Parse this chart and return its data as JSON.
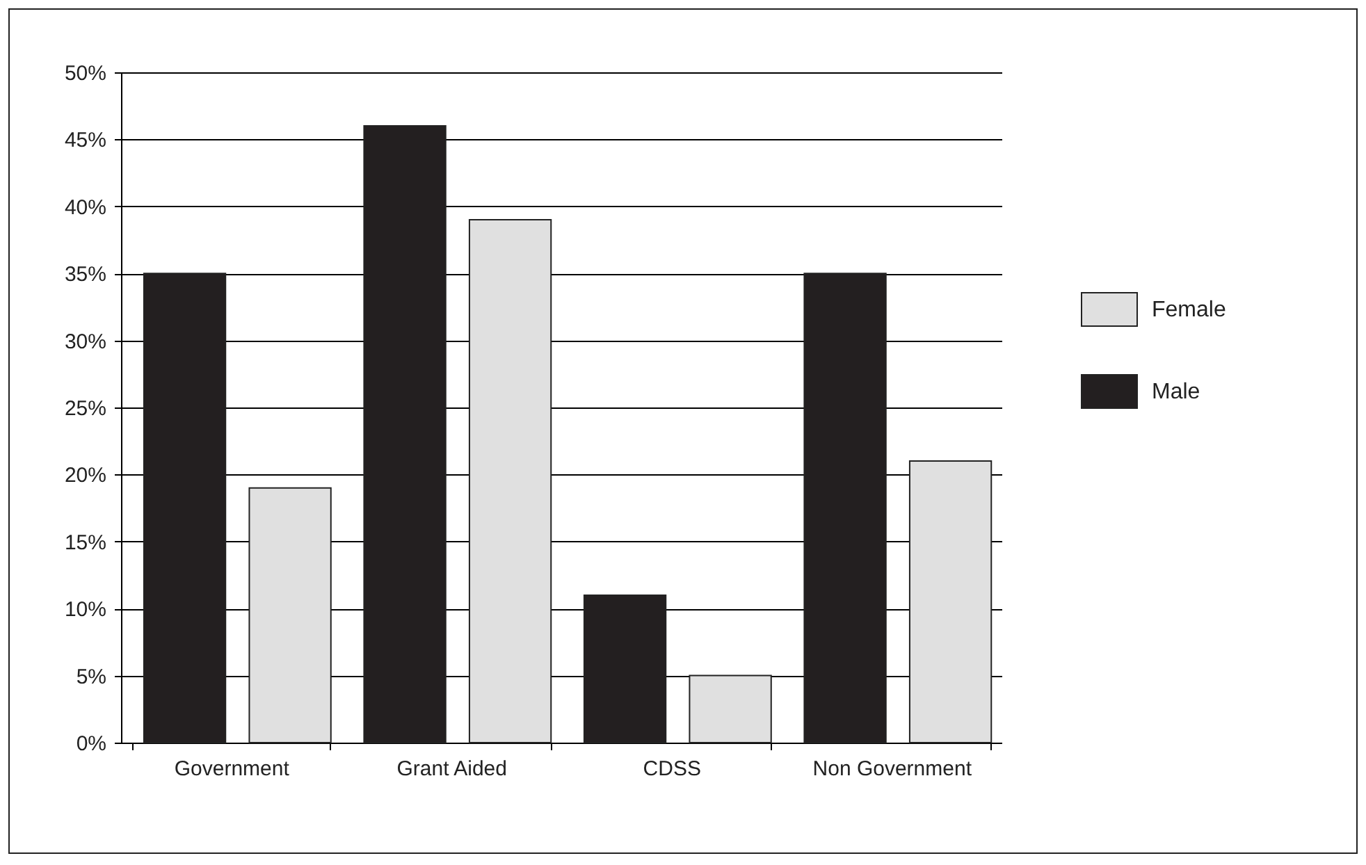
{
  "chart_data": {
    "type": "bar",
    "categories": [
      "Government",
      "Grant Aided",
      "CDSS",
      "Non Government"
    ],
    "series": [
      {
        "name": "Male",
        "color": "#231f20",
        "values": [
          35,
          46,
          11,
          35
        ]
      },
      {
        "name": "Female",
        "color": "#e0e0e0",
        "values": [
          19,
          39,
          5,
          21
        ]
      }
    ],
    "ylim": [
      0,
      50
    ],
    "yticks": [
      {
        "value": 0,
        "label": "0%"
      },
      {
        "value": 5,
        "label": "5%"
      },
      {
        "value": 10,
        "label": "10%"
      },
      {
        "value": 15,
        "label": "15%"
      },
      {
        "value": 20,
        "label": "20%"
      },
      {
        "value": 25,
        "label": "25%"
      },
      {
        "value": 30,
        "label": "30%"
      },
      {
        "value": 35,
        "label": "35%"
      },
      {
        "value": 40,
        "label": "40%"
      },
      {
        "value": 45,
        "label": "45%"
      },
      {
        "value": 50,
        "label": "50%"
      }
    ],
    "grid": "y",
    "legend": "right"
  }
}
